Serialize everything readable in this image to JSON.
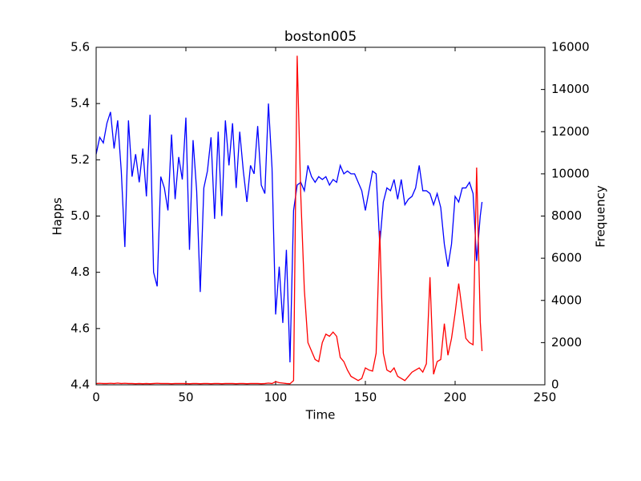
{
  "chart_data": {
    "type": "line",
    "title": "boston005",
    "xlabel": "Time",
    "ylabel": "Happs",
    "y2label": "Frequency",
    "x": [
      0,
      2,
      4,
      6,
      8,
      10,
      12,
      14,
      16,
      18,
      20,
      22,
      24,
      26,
      28,
      30,
      32,
      34,
      36,
      38,
      40,
      42,
      44,
      46,
      48,
      50,
      52,
      54,
      56,
      58,
      60,
      62,
      64,
      66,
      68,
      70,
      72,
      74,
      76,
      78,
      80,
      82,
      84,
      86,
      88,
      90,
      92,
      94,
      96,
      98,
      100,
      102,
      104,
      106,
      108,
      110,
      112,
      114,
      116,
      118,
      120,
      122,
      124,
      126,
      128,
      130,
      132,
      134,
      136,
      138,
      140,
      142,
      144,
      146,
      148,
      150,
      152,
      154,
      156,
      158,
      160,
      162,
      164,
      166,
      168,
      170,
      172,
      174,
      176,
      178,
      180,
      182,
      184,
      186,
      188,
      190,
      192,
      194,
      196,
      198,
      200,
      202,
      204,
      206,
      208,
      210,
      212,
      214,
      215
    ],
    "series": [
      {
        "color": "#0000ff",
        "values": [
          5.22,
          5.28,
          5.26,
          5.33,
          5.37,
          5.24,
          5.34,
          5.16,
          4.89,
          5.34,
          5.14,
          5.22,
          5.12,
          5.24,
          5.07,
          5.36,
          4.8,
          4.75,
          5.14,
          5.1,
          5.02,
          5.29,
          5.06,
          5.21,
          5.13,
          5.35,
          4.88,
          5.27,
          5.09,
          4.73,
          5.1,
          5.16,
          5.28,
          4.99,
          5.3,
          5.0,
          5.34,
          5.18,
          5.33,
          5.1,
          5.3,
          5.16,
          5.05,
          5.18,
          5.15,
          5.32,
          5.11,
          5.08,
          5.4,
          5.17,
          4.65,
          4.82,
          4.62,
          4.88,
          4.48,
          5.02,
          5.11,
          5.12,
          5.09,
          5.18,
          5.14,
          5.12,
          5.14,
          5.13,
          5.14,
          5.11,
          5.13,
          5.12,
          5.18,
          5.15,
          5.16,
          5.15,
          5.15,
          5.12,
          5.09,
          5.02,
          5.09,
          5.16,
          5.15,
          4.9,
          5.05,
          5.1,
          5.09,
          5.13,
          5.06,
          5.13,
          5.04,
          5.06,
          5.07,
          5.1,
          5.18,
          5.09,
          5.09,
          5.08,
          5.04,
          5.08,
          5.03,
          4.9,
          4.82,
          4.9,
          5.07,
          5.05,
          5.1,
          5.1,
          5.12,
          5.08,
          4.84,
          5.0,
          5.05
        ]
      },
      {
        "color": "#ff0000",
        "axis": "y2",
        "values": [
          60,
          70,
          60,
          60,
          70,
          60,
          80,
          60,
          70,
          60,
          60,
          50,
          60,
          50,
          60,
          50,
          60,
          70,
          60,
          60,
          60,
          50,
          60,
          60,
          60,
          60,
          50,
          60,
          60,
          50,
          60,
          60,
          50,
          60,
          60,
          50,
          60,
          60,
          60,
          50,
          60,
          60,
          50,
          60,
          60,
          60,
          50,
          60,
          80,
          60,
          150,
          100,
          80,
          60,
          50,
          200,
          15600,
          9000,
          4500,
          2000,
          1600,
          1200,
          1100,
          2000,
          2400,
          2300,
          2500,
          2300,
          1300,
          1100,
          700,
          400,
          300,
          200,
          300,
          800,
          700,
          650,
          1500,
          7300,
          1500,
          700,
          600,
          800,
          400,
          300,
          200,
          400,
          600,
          700,
          800,
          600,
          1000,
          5100,
          500,
          1100,
          1200,
          2900,
          1400,
          2200,
          3400,
          4800,
          3500,
          2200,
          2000,
          1900,
          10300,
          3000,
          1600
        ]
      }
    ],
    "xlim": [
      0,
      250
    ],
    "xticks": [
      0,
      50,
      100,
      150,
      200,
      250
    ],
    "ylim": [
      4.4,
      5.6
    ],
    "yticks": [
      4.4,
      4.6,
      4.8,
      {
        "value": 5.0,
        "label": "5.0"
      },
      5.2,
      5.4,
      5.6
    ],
    "y2lim": [
      0,
      16000
    ],
    "y2ticks": [
      0,
      2000,
      4000,
      6000,
      8000,
      10000,
      12000,
      14000,
      16000
    ]
  }
}
